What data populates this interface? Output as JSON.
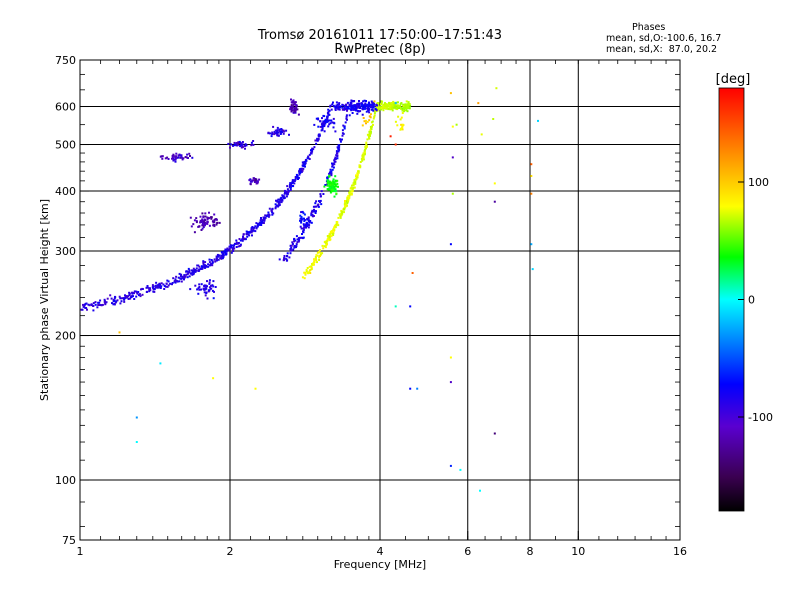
{
  "header": {
    "title_line1": "Tromsø 20161011 17:50:00–17:51:43",
    "title_line2": "RwPretec (8p)",
    "info_heading": "Phases",
    "info_line1": "mean, sd,O:-100.6, 16.7",
    "info_line2": "mean, sd,X:  87.0, 20.2"
  },
  "colorbar": {
    "label": "[deg]",
    "min": -180,
    "max": 180,
    "ticks": [
      100,
      0,
      -100
    ],
    "tick_labels": [
      "100",
      "0",
      "-100"
    ]
  },
  "chart_data": {
    "type": "scatter",
    "xlabel": "Frequency [MHz]",
    "ylabel": "Stationary phase Virtual Height [km]",
    "x_scale": "log",
    "y_scale": "log",
    "xlim": [
      1,
      16
    ],
    "ylim": [
      75,
      750
    ],
    "x_ticks": [
      1,
      2,
      4,
      6,
      8,
      10,
      16
    ],
    "x_tick_labels": [
      "1",
      "2",
      "4",
      "6",
      "8",
      "10",
      "16"
    ],
    "y_ticks": [
      75,
      100,
      200,
      300,
      400,
      500,
      600,
      750
    ],
    "y_tick_labels": [
      "75",
      "100",
      "200",
      "300",
      "400",
      "500",
      "600",
      "750"
    ],
    "x_gridlines": [
      2,
      4,
      6,
      8,
      10
    ],
    "y_gridlines": [
      100,
      200,
      300,
      400,
      500,
      600
    ],
    "traces": [
      {
        "f0": 1.0,
        "f1": 3.9,
        "h0": 228,
        "hpeak": 235,
        "fpeak": 1.5,
        "rise": 2.6,
        "phase0": -110,
        "phase1": -105,
        "jit": 0.02,
        "n": 700
      },
      {
        "f0": 2.8,
        "f1": 4.6,
        "h0": 265,
        "hpeak": 265,
        "fpeak": 2.8,
        "rise": 3.2,
        "phase0": 100,
        "phase1": 80,
        "jit": 0.02,
        "n": 450
      },
      {
        "f0": 2.5,
        "f1": 3.95,
        "h0": 280,
        "hpeak": 280,
        "fpeak": 2.5,
        "rise": 2.7,
        "phase0": -108,
        "phase1": -105,
        "jit": 0.03,
        "n": 260
      }
    ],
    "clusters": [
      {
        "fx": 1.8,
        "hy": 345,
        "fs": 0.07,
        "hs": 0.04,
        "phase": -125,
        "n": 70
      },
      {
        "fx": 1.55,
        "hy": 470,
        "fs": 0.07,
        "hs": 0.015,
        "phase": -120,
        "n": 40
      },
      {
        "fx": 2.1,
        "hy": 500,
        "fs": 0.05,
        "hs": 0.015,
        "phase": -115,
        "n": 40
      },
      {
        "fx": 2.5,
        "hy": 530,
        "fs": 0.05,
        "hs": 0.025,
        "phase": -110,
        "n": 40
      },
      {
        "fx": 2.7,
        "hy": 595,
        "fs": 0.02,
        "hs": 0.035,
        "phase": -125,
        "n": 45
      },
      {
        "fx": 3.1,
        "hy": 555,
        "fs": 0.04,
        "hs": 0.03,
        "phase": -105,
        "n": 35
      },
      {
        "fx": 2.25,
        "hy": 420,
        "fs": 0.03,
        "hs": 0.015,
        "phase": -120,
        "n": 25
      },
      {
        "fx": 2.8,
        "hy": 350,
        "fs": 0.02,
        "hs": 0.03,
        "phase": -100,
        "n": 20
      },
      {
        "fx": 3.2,
        "hy": 410,
        "fs": 0.025,
        "hs": 0.04,
        "phase": 40,
        "n": 90
      },
      {
        "fx": 4.4,
        "hy": 560,
        "fs": 0.02,
        "hs": 0.05,
        "phase": 100,
        "n": 14
      },
      {
        "fx": 3.8,
        "hy": 560,
        "fs": 0.03,
        "hs": 0.04,
        "phase": 120,
        "n": 10
      },
      {
        "fx": 1.8,
        "hy": 250,
        "fs": 0.06,
        "hs": 0.04,
        "phase": -110,
        "n": 45
      }
    ],
    "scattered_points": [
      [
        1.2,
        203,
        120
      ],
      [
        1.45,
        175,
        -10
      ],
      [
        1.3,
        135,
        -50
      ],
      [
        1.3,
        120,
        0
      ],
      [
        1.85,
        163,
        100
      ],
      [
        2.25,
        155,
        100
      ],
      [
        4.3,
        230,
        10
      ],
      [
        4.6,
        230,
        -100
      ],
      [
        4.6,
        155,
        -100
      ],
      [
        4.75,
        155,
        -60
      ],
      [
        5.55,
        160,
        -120
      ],
      [
        5.55,
        180,
        100
      ],
      [
        5.55,
        107,
        -90
      ],
      [
        5.8,
        105,
        0
      ],
      [
        6.35,
        95,
        0
      ],
      [
        6.8,
        125,
        -140
      ],
      [
        5.55,
        310,
        -100
      ],
      [
        5.6,
        395,
        80
      ],
      [
        5.6,
        470,
        -120
      ],
      [
        5.7,
        550,
        80
      ],
      [
        5.6,
        545,
        100
      ],
      [
        5.55,
        640,
        120
      ],
      [
        6.3,
        610,
        130
      ],
      [
        6.4,
        525,
        95
      ],
      [
        6.8,
        380,
        -130
      ],
      [
        6.8,
        415,
        100
      ],
      [
        6.75,
        565,
        85
      ],
      [
        6.85,
        655,
        90
      ],
      [
        8.05,
        395,
        140
      ],
      [
        8.05,
        430,
        110
      ],
      [
        8.05,
        455,
        150
      ],
      [
        8.05,
        310,
        -40
      ],
      [
        8.1,
        275,
        -20
      ],
      [
        8.3,
        560,
        -20
      ],
      [
        4.3,
        610,
        -30
      ],
      [
        4.65,
        270,
        150
      ],
      [
        4.2,
        520,
        170
      ],
      [
        4.3,
        500,
        165
      ],
      [
        3.9,
        615,
        120
      ]
    ]
  }
}
